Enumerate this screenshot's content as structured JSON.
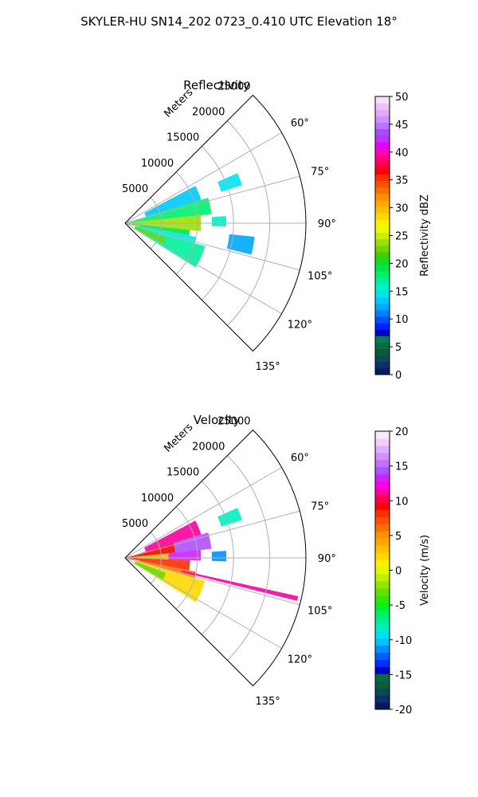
{
  "figure_title": "SKYLER-HU  SN14_202  0723_0.410 UTC Elevation 18°",
  "chart_data": [
    {
      "type": "polar-sector",
      "title": "Reflectivity",
      "radial_label": "Meters",
      "r_ticks": [
        5000,
        10000,
        15000,
        20000,
        25000
      ],
      "r_tick_labels": [
        "5000",
        "10000",
        "15000",
        "20000",
        "25000"
      ],
      "r_max": 25000,
      "theta_range_deg": [
        45,
        135
      ],
      "theta_ticks_deg": [
        60,
        75,
        90,
        105,
        120,
        135
      ],
      "theta_tick_labels": [
        "60°",
        "75°",
        "90°",
        "105°",
        "120°",
        "135°"
      ],
      "grid": true,
      "colorbar": {
        "label": "Reflectivity dBZ",
        "min": 0,
        "max": 50,
        "ticks": [
          0,
          5,
          10,
          15,
          20,
          25,
          30,
          35,
          40,
          45,
          50
        ],
        "tick_labels": [
          "0",
          "5",
          "10",
          "15",
          "20",
          "25",
          "30",
          "35",
          "40",
          "45",
          "50"
        ],
        "colors": [
          "#061b5e",
          "#0a3070",
          "#0b4a50",
          "#0a5c3a",
          "#0a6a46",
          "#0b7a4e",
          "#0000cc",
          "#0020ff",
          "#0050ff",
          "#0080ff",
          "#00a8ff",
          "#00c8ff",
          "#00e4f0",
          "#00f0c8",
          "#00f0a0",
          "#00f070",
          "#00e848",
          "#10e020",
          "#40d000",
          "#70d800",
          "#a0e000",
          "#c8f000",
          "#e8ff00",
          "#fff000",
          "#ffd800",
          "#ffc000",
          "#ffa800",
          "#ff9000",
          "#ff7000",
          "#ff5000",
          "#ff3000",
          "#ff0000",
          "#ff0040",
          "#ff0080",
          "#ff00c0",
          "#e000ff",
          "#c030ff",
          "#a050ff",
          "#c070ff",
          "#d090ff",
          "#e0a8f8",
          "#f0c0f8",
          "#f8e0fc"
        ]
      },
      "echo_regions": [
        {
          "theta": [
            62,
            73
          ],
          "r": [
            3000,
            11000
          ],
          "value": 13
        },
        {
          "theta": [
            73,
            84
          ],
          "r": [
            500,
            12000
          ],
          "value": 18
        },
        {
          "theta": [
            84,
            96
          ],
          "r": [
            400,
            10500
          ],
          "value": 24
        },
        {
          "theta": [
            96,
            101
          ],
          "r": [
            500,
            9000
          ],
          "value": 19
        },
        {
          "theta": [
            101,
            106
          ],
          "r": [
            2000,
            10000
          ],
          "value": 15
        },
        {
          "theta": [
            106,
            122
          ],
          "r": [
            1500,
            11500
          ],
          "value": 17
        },
        {
          "theta": [
            110,
            118
          ],
          "r": [
            1500,
            6000
          ],
          "value": 23
        },
        {
          "theta": [
            66,
            72
          ],
          "r": [
            14000,
            17000
          ],
          "value": 14
        },
        {
          "theta": [
            86,
            92
          ],
          "r": [
            12000,
            14000
          ],
          "value": 16
        },
        {
          "theta": [
            96,
            104
          ],
          "r": [
            14500,
            18000
          ],
          "value": 12
        }
      ]
    },
    {
      "type": "polar-sector",
      "title": "Velocity",
      "radial_label": "Meters",
      "r_ticks": [
        5000,
        10000,
        15000,
        20000,
        25000
      ],
      "r_tick_labels": [
        "5000",
        "10000",
        "15000",
        "20000",
        "25000"
      ],
      "r_max": 25000,
      "theta_range_deg": [
        45,
        135
      ],
      "theta_ticks_deg": [
        60,
        75,
        90,
        105,
        120,
        135
      ],
      "theta_tick_labels": [
        "60°",
        "75°",
        "90°",
        "105°",
        "120°",
        "135°"
      ],
      "grid": true,
      "colorbar": {
        "label": "Velocity (m/s)",
        "min": -20,
        "max": 20,
        "ticks": [
          -20,
          -15,
          -10,
          -5,
          0,
          5,
          10,
          15,
          20
        ],
        "tick_labels": [
          "-20",
          "-15",
          "-10",
          "-5",
          "0",
          "5",
          "10",
          "15",
          "20"
        ],
        "colors": [
          "#061b5e",
          "#0a3070",
          "#0b4a50",
          "#0a5c3a",
          "#0a6a46",
          "#0000cc",
          "#0030ff",
          "#0060ff",
          "#0090ff",
          "#00c0ff",
          "#00e0f0",
          "#00f0c0",
          "#00f090",
          "#00f060",
          "#00f020",
          "#30e800",
          "#60e000",
          "#90e800",
          "#c0f000",
          "#e0f800",
          "#fff000",
          "#ffd800",
          "#ffc000",
          "#ffa800",
          "#ff9000",
          "#ff7000",
          "#ff5000",
          "#ff3000",
          "#ff0000",
          "#ff0050",
          "#ff00a0",
          "#ff00e0",
          "#d020ff",
          "#b050ff",
          "#c070ff",
          "#d090ff",
          "#e0b0f8",
          "#f0d0fc",
          "#f8e8fc"
        ]
      },
      "echo_regions": [
        {
          "theta": [
            62,
            73
          ],
          "r": [
            3000,
            11000
          ],
          "value": 11
        },
        {
          "theta": [
            73,
            84
          ],
          "r": [
            500,
            7000
          ],
          "value": 9
        },
        {
          "theta": [
            73,
            84
          ],
          "r": [
            7000,
            12000
          ],
          "value": 14
        },
        {
          "theta": [
            84,
            92
          ],
          "r": [
            400,
            6000
          ],
          "value": 3
        },
        {
          "theta": [
            84,
            92
          ],
          "r": [
            6000,
            10500
          ],
          "value": 13
        },
        {
          "theta": [
            92,
            101
          ],
          "r": [
            500,
            9000
          ],
          "value": 8
        },
        {
          "theta": [
            101,
            106
          ],
          "r": [
            2000,
            10000
          ],
          "value": 6
        },
        {
          "theta": [
            106,
            122
          ],
          "r": [
            1500,
            11500
          ],
          "value": 2
        },
        {
          "theta": [
            110,
            120
          ],
          "r": [
            1500,
            6000
          ],
          "value": -3
        },
        {
          "theta": [
            66,
            72
          ],
          "r": [
            14000,
            17000
          ],
          "value": -8
        },
        {
          "theta": [
            86,
            92
          ],
          "r": [
            12000,
            14000
          ],
          "value": -11
        },
        {
          "theta": [
            102.5,
            104
          ],
          "r": [
            8000,
            24500
          ],
          "value": 11
        }
      ]
    }
  ]
}
